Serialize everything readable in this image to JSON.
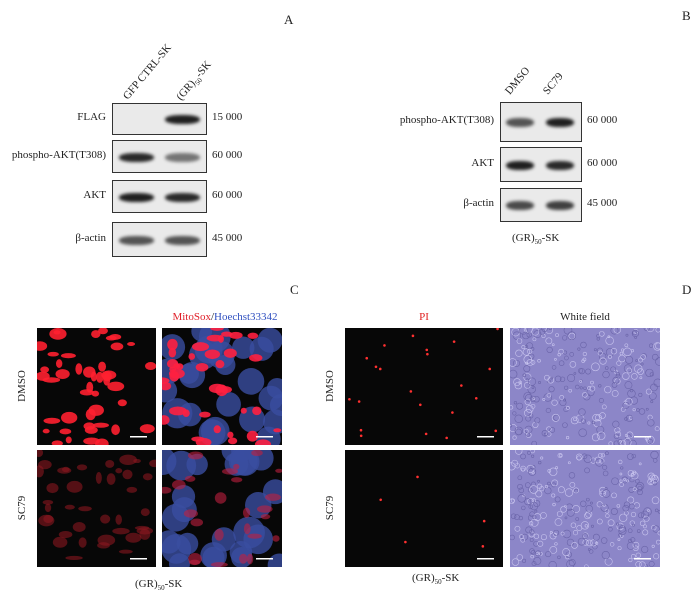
{
  "panelA": {
    "label": "A",
    "columns": [
      "GFP CTRL-SK",
      "(GR)50-SK"
    ],
    "rows": [
      {
        "name": "FLAG",
        "mw": "15 000"
      },
      {
        "name": "phospho-AKT(T308)",
        "mw": "60 000"
      },
      {
        "name": "AKT",
        "mw": "60 000"
      },
      {
        "name": "β-actin",
        "mw": "45 000"
      }
    ]
  },
  "panelB": {
    "label": "B",
    "columns": [
      "DMSO",
      "SC79"
    ],
    "rows": [
      {
        "name": "phospho-AKT(T308)",
        "mw": "60 000"
      },
      {
        "name": "AKT",
        "mw": "60 000"
      },
      {
        "name": "β-actin",
        "mw": "45 000"
      }
    ],
    "caption_main": "(GR)",
    "caption_sub": "50",
    "caption_tail": "-SK"
  },
  "panelC": {
    "label": "C",
    "header_red": "MitoSox",
    "header_sep": "/",
    "header_blue": "Hoechst33342",
    "rows": [
      "DMSO",
      "SC79"
    ],
    "caption_main": "(GR)",
    "caption_sub": "50",
    "caption_tail": "-SK",
    "colors": {
      "red": "#e0202a",
      "blue": "#3050c0"
    }
  },
  "panelD": {
    "label": "D",
    "headers": [
      "PI",
      "White field"
    ],
    "rows": [
      "DMSO",
      "SC79"
    ],
    "caption_main": "(GR)",
    "caption_sub": "50",
    "caption_tail": "-SK",
    "colors": {
      "pi": "#e02020",
      "field": "#8c86c8"
    }
  }
}
